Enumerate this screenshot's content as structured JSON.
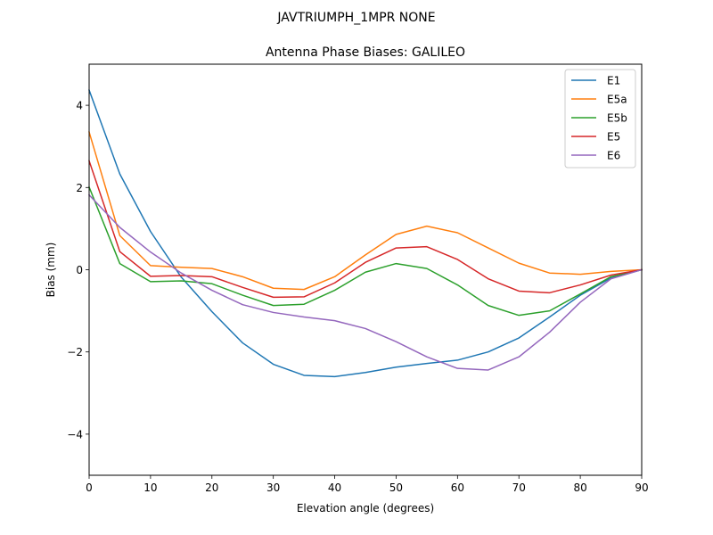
{
  "figure": {
    "suptitle": "JAVTRIUMPH_1MPR NONE"
  },
  "chart_data": {
    "type": "line",
    "title": "Antenna Phase Biases: GALILEO",
    "xlabel": "Elevation angle (degrees)",
    "ylabel": "Bias (mm)",
    "xlim": [
      0,
      90
    ],
    "ylim": [
      -5,
      5
    ],
    "xticks": [
      0,
      10,
      20,
      30,
      40,
      50,
      60,
      70,
      80,
      90
    ],
    "yticks": [
      -4,
      -2,
      0,
      2,
      4
    ],
    "xtick_labels": [
      "0",
      "10",
      "20",
      "30",
      "40",
      "50",
      "60",
      "70",
      "80",
      "90"
    ],
    "ytick_labels": [
      "−4",
      "−2",
      "0",
      "2",
      "4"
    ],
    "grid": false,
    "legend_position": "top-right",
    "x": [
      0,
      5,
      10,
      15,
      20,
      25,
      30,
      35,
      40,
      45,
      50,
      55,
      60,
      65,
      70,
      75,
      80,
      85,
      90
    ],
    "series": [
      {
        "name": "E1",
        "color": "#1f77b4",
        "values": [
          4.37,
          2.33,
          0.93,
          -0.18,
          -1.02,
          -1.78,
          -2.3,
          -2.57,
          -2.6,
          -2.5,
          -2.37,
          -2.28,
          -2.2,
          -2.0,
          -1.66,
          -1.15,
          -0.62,
          -0.2,
          0.0
        ]
      },
      {
        "name": "E5a",
        "color": "#ff7f0e",
        "values": [
          3.35,
          0.83,
          0.1,
          0.06,
          0.03,
          -0.17,
          -0.45,
          -0.48,
          -0.17,
          0.36,
          0.86,
          1.06,
          0.9,
          0.53,
          0.16,
          -0.08,
          -0.11,
          -0.04,
          0.0
        ]
      },
      {
        "name": "E5b",
        "color": "#2ca02c",
        "values": [
          2.01,
          0.15,
          -0.29,
          -0.27,
          -0.34,
          -0.62,
          -0.87,
          -0.84,
          -0.5,
          -0.06,
          0.15,
          0.03,
          -0.37,
          -0.87,
          -1.11,
          -1.0,
          -0.59,
          -0.17,
          0.0
        ]
      },
      {
        "name": "E5",
        "color": "#d62728",
        "values": [
          2.65,
          0.44,
          -0.16,
          -0.14,
          -0.17,
          -0.43,
          -0.67,
          -0.66,
          -0.32,
          0.18,
          0.53,
          0.56,
          0.25,
          -0.22,
          -0.52,
          -0.56,
          -0.37,
          -0.13,
          0.0
        ]
      },
      {
        "name": "E6",
        "color": "#9467bd",
        "values": [
          1.82,
          1.03,
          0.43,
          -0.08,
          -0.5,
          -0.85,
          -1.04,
          -1.15,
          -1.24,
          -1.43,
          -1.75,
          -2.12,
          -2.4,
          -2.44,
          -2.12,
          -1.52,
          -0.79,
          -0.22,
          0.0
        ]
      }
    ]
  }
}
